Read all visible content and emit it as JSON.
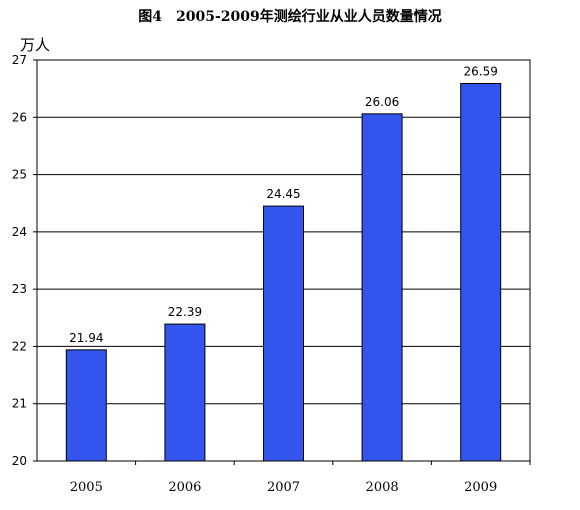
{
  "figure_title": "图4　2005-2009年测绘行业从业人员数量情况",
  "y_unit": "万人",
  "colors": {
    "bar": "#3355ee",
    "bar_stroke": "#000000",
    "grid": "#000000"
  },
  "chart_data": {
    "type": "bar",
    "title": "图4　2005-2009年测绘行业从业人员数量情况",
    "xlabel": "",
    "ylabel": "万人",
    "categories": [
      "2005",
      "2006",
      "2007",
      "2008",
      "2009"
    ],
    "values": [
      21.94,
      22.39,
      24.45,
      26.06,
      26.59
    ],
    "value_labels": [
      "21.94",
      "22.39",
      "24.45",
      "26.06",
      "26.59"
    ],
    "ylim": [
      20,
      27
    ],
    "yticks": [
      20,
      21,
      22,
      23,
      24,
      25,
      26,
      27
    ],
    "grid": true,
    "legend": "none"
  }
}
